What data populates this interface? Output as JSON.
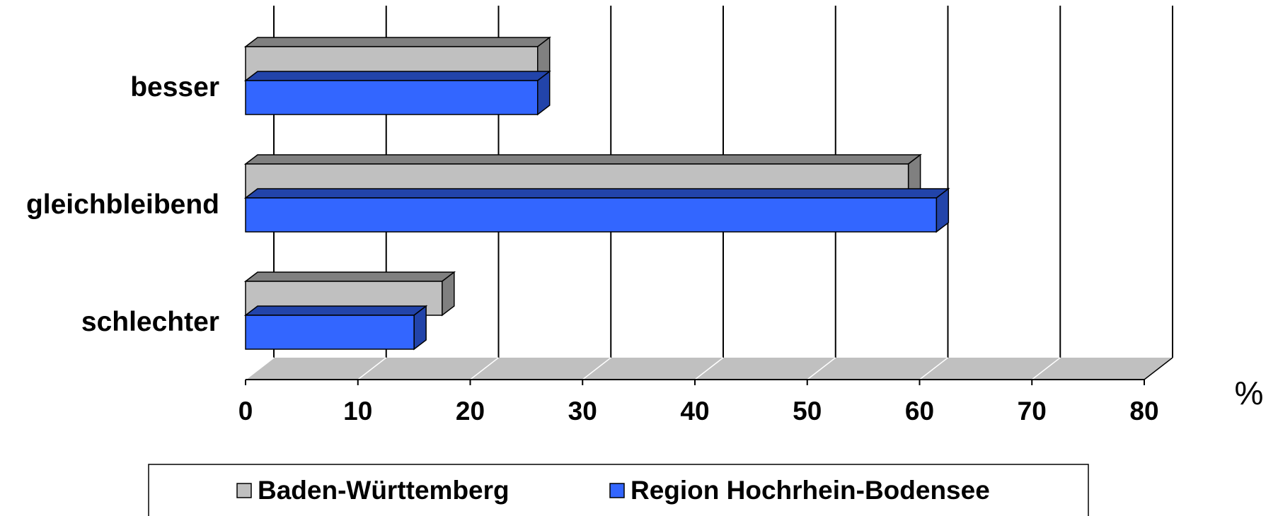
{
  "chart_data": {
    "type": "bar",
    "orientation": "horizontal",
    "style": "3d",
    "categories": [
      "besser",
      "gleichbleibend",
      "schlechter"
    ],
    "series": [
      {
        "name": "Baden-Württemberg",
        "values": [
          26,
          59,
          17.5
        ],
        "color": "#c0c0c0",
        "side_color": "#808080"
      },
      {
        "name": "Region Hochrhein-Bodensee",
        "values": [
          26,
          61.5,
          15
        ],
        "color": "#3366ff",
        "side_color": "#2244aa"
      }
    ],
    "x_ticks": [
      0,
      10,
      20,
      30,
      40,
      50,
      60,
      70,
      80
    ],
    "xlim": [
      0,
      80
    ],
    "unit_label": "%",
    "grid": true,
    "legend_position": "bottom"
  }
}
